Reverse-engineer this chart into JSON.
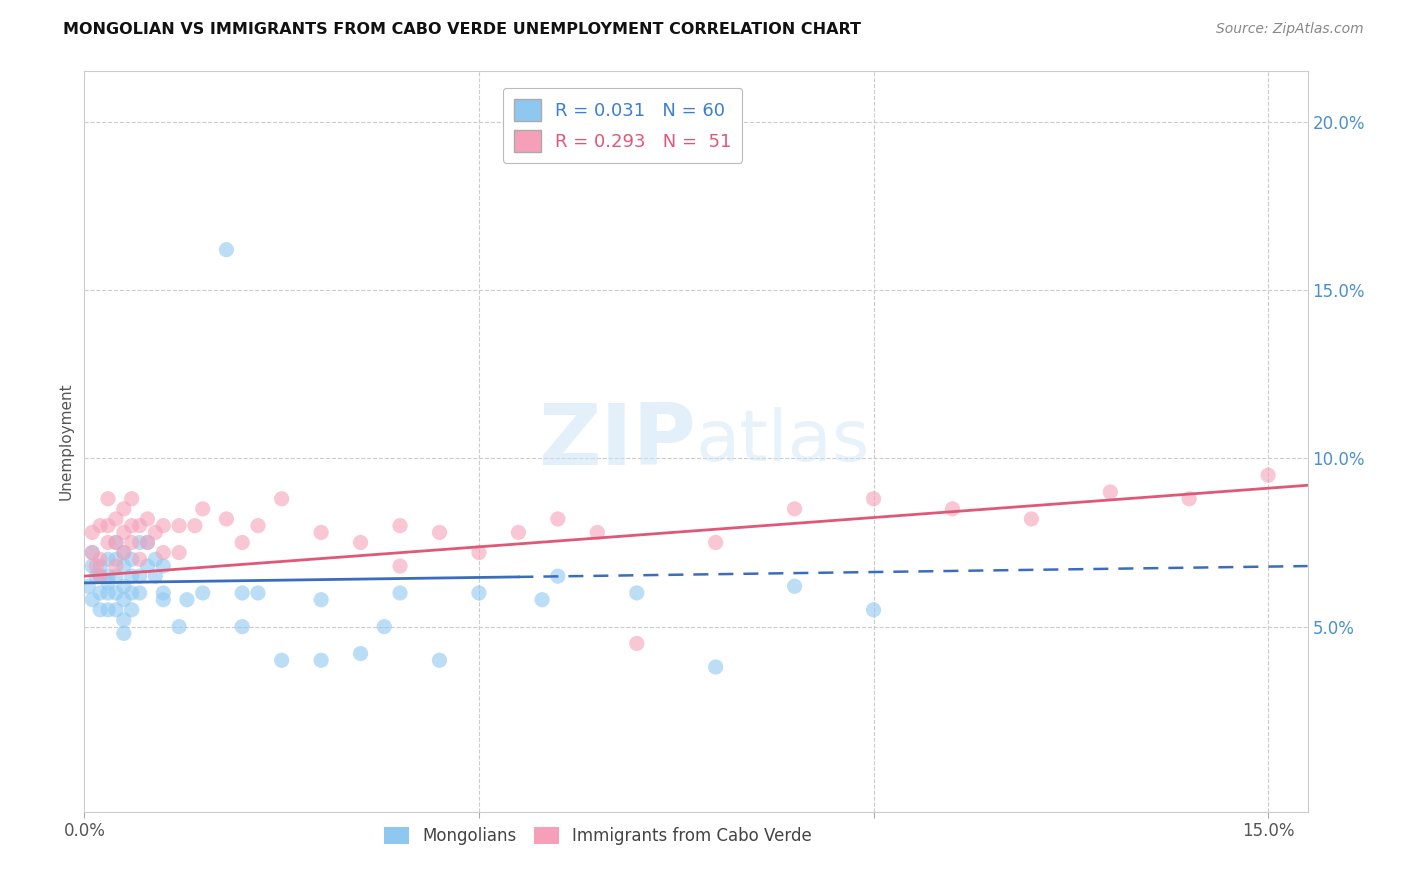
{
  "title": "MONGOLIAN VS IMMIGRANTS FROM CABO VERDE UNEMPLOYMENT CORRELATION CHART",
  "source": "Source: ZipAtlas.com",
  "ylabel": "Unemployment",
  "watermark": "ZIPatlas",
  "xlim": [
    0.0,
    0.155
  ],
  "ylim": [
    -0.005,
    0.215
  ],
  "x_ticks": [
    0.0,
    0.05,
    0.1,
    0.15
  ],
  "x_tick_labels": [
    "0.0%",
    "",
    "",
    "15.0%"
  ],
  "y_ticks_right": [
    0.05,
    0.1,
    0.15,
    0.2
  ],
  "y_tick_labels_right": [
    "5.0%",
    "10.0%",
    "15.0%",
    "20.0%"
  ],
  "blue_color": "#8ec8f0",
  "pink_color": "#f5a0b8",
  "blue_line_color": "#3a6dbf",
  "pink_line_color": "#e05878",
  "blue_scatter_x": [
    0.0005,
    0.001,
    0.001,
    0.001,
    0.0015,
    0.002,
    0.002,
    0.002,
    0.002,
    0.003,
    0.003,
    0.003,
    0.003,
    0.003,
    0.004,
    0.004,
    0.004,
    0.004,
    0.004,
    0.005,
    0.005,
    0.005,
    0.005,
    0.005,
    0.005,
    0.006,
    0.006,
    0.006,
    0.006,
    0.007,
    0.007,
    0.007,
    0.008,
    0.008,
    0.009,
    0.009,
    0.01,
    0.01,
    0.01,
    0.012,
    0.013,
    0.015,
    0.018,
    0.02,
    0.02,
    0.022,
    0.025,
    0.03,
    0.03,
    0.035,
    0.038,
    0.04,
    0.045,
    0.05,
    0.058,
    0.06,
    0.07,
    0.08,
    0.09,
    0.1
  ],
  "blue_scatter_y": [
    0.062,
    0.058,
    0.068,
    0.072,
    0.065,
    0.055,
    0.06,
    0.065,
    0.068,
    0.06,
    0.063,
    0.065,
    0.07,
    0.055,
    0.055,
    0.06,
    0.065,
    0.07,
    0.075,
    0.048,
    0.052,
    0.058,
    0.062,
    0.068,
    0.072,
    0.055,
    0.06,
    0.065,
    0.07,
    0.06,
    0.065,
    0.075,
    0.068,
    0.075,
    0.065,
    0.07,
    0.058,
    0.06,
    0.068,
    0.05,
    0.058,
    0.06,
    0.162,
    0.05,
    0.06,
    0.06,
    0.04,
    0.04,
    0.058,
    0.042,
    0.05,
    0.06,
    0.04,
    0.06,
    0.058,
    0.065,
    0.06,
    0.038,
    0.062,
    0.055
  ],
  "pink_scatter_x": [
    0.001,
    0.001,
    0.0015,
    0.002,
    0.002,
    0.002,
    0.003,
    0.003,
    0.003,
    0.004,
    0.004,
    0.004,
    0.005,
    0.005,
    0.005,
    0.006,
    0.006,
    0.006,
    0.007,
    0.007,
    0.008,
    0.008,
    0.009,
    0.01,
    0.01,
    0.012,
    0.012,
    0.014,
    0.015,
    0.018,
    0.02,
    0.022,
    0.025,
    0.03,
    0.035,
    0.04,
    0.04,
    0.045,
    0.05,
    0.055,
    0.06,
    0.065,
    0.07,
    0.08,
    0.09,
    0.1,
    0.11,
    0.12,
    0.13,
    0.14,
    0.15
  ],
  "pink_scatter_y": [
    0.072,
    0.078,
    0.068,
    0.065,
    0.07,
    0.08,
    0.075,
    0.08,
    0.088,
    0.068,
    0.075,
    0.082,
    0.072,
    0.078,
    0.085,
    0.075,
    0.08,
    0.088,
    0.07,
    0.08,
    0.075,
    0.082,
    0.078,
    0.072,
    0.08,
    0.072,
    0.08,
    0.08,
    0.085,
    0.082,
    0.075,
    0.08,
    0.088,
    0.078,
    0.075,
    0.068,
    0.08,
    0.078,
    0.072,
    0.078,
    0.082,
    0.078,
    0.045,
    0.075,
    0.085,
    0.088,
    0.085,
    0.082,
    0.09,
    0.088,
    0.095
  ],
  "blue_line_start_x": 0.0,
  "blue_line_end_solid_x": 0.055,
  "blue_line_end_x": 0.155,
  "blue_line_start_y": 0.063,
  "blue_line_end_y": 0.068,
  "pink_line_start_x": 0.0,
  "pink_line_end_x": 0.155,
  "pink_line_start_y": 0.065,
  "pink_line_end_y": 0.092
}
